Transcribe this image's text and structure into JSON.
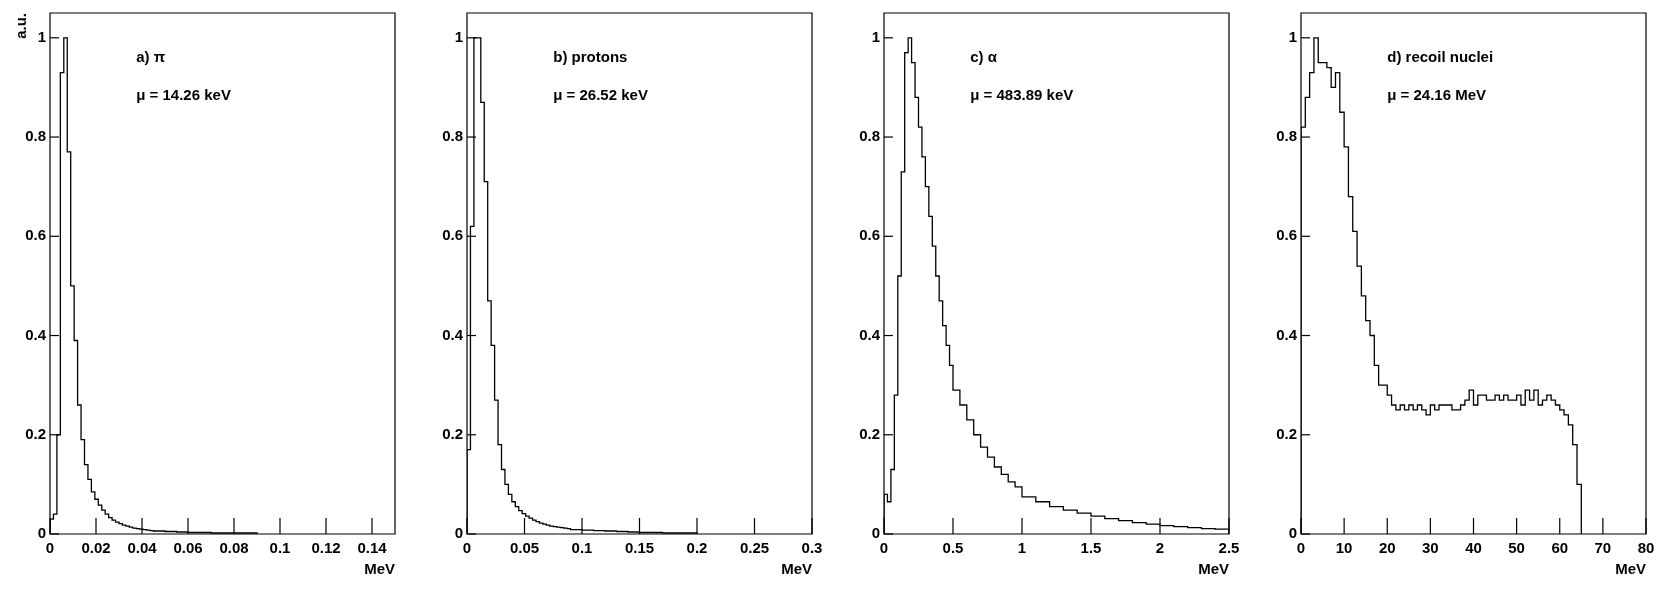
{
  "chart_data": [
    {
      "type": "histogram",
      "ylabel": "a.u.",
      "xlabel": "MeV",
      "annotations": [
        "a) π",
        "μ = 14.26 keV"
      ],
      "bins": [
        0,
        0.0015,
        0.003,
        0.0045,
        0.006,
        0.0075,
        0.009,
        0.0105,
        0.012,
        0.0135,
        0.015,
        0.0165,
        0.018,
        0.0195,
        0.021,
        0.0225,
        0.024,
        0.0255,
        0.027,
        0.0285,
        0.03,
        0.0315,
        0.033,
        0.0345,
        0.036,
        0.0375,
        0.039,
        0.0405,
        0.042,
        0.0435,
        0.045,
        0.05,
        0.055,
        0.06,
        0.065,
        0.07,
        0.075,
        0.08,
        0.085,
        0.09
      ],
      "values": [
        0.03,
        0.04,
        0.2,
        0.93,
        1.0,
        0.77,
        0.5,
        0.39,
        0.26,
        0.19,
        0.14,
        0.11,
        0.085,
        0.07,
        0.058,
        0.048,
        0.04,
        0.033,
        0.028,
        0.024,
        0.021,
        0.018,
        0.016,
        0.014,
        0.012,
        0.011,
        0.01,
        0.009,
        0.008,
        0.007,
        0.006,
        0.005,
        0.004,
        0.003,
        0.003,
        0.002,
        0.002,
        0.002,
        0.002
      ],
      "color": "#000000",
      "xlim": [
        0,
        0.15
      ],
      "xticks": [
        0,
        0.02,
        0.04,
        0.06,
        0.08,
        0.1,
        0.12,
        0.14
      ],
      "ylim": [
        0,
        1.05
      ],
      "yticks": [
        0,
        0.2,
        0.4,
        0.6,
        0.8,
        1
      ],
      "grid": false
    },
    {
      "type": "histogram",
      "xlabel": "MeV",
      "annotations": [
        "b) protons",
        "μ = 26.52 keV"
      ],
      "bins": [
        0,
        0.003,
        0.006,
        0.009,
        0.012,
        0.015,
        0.018,
        0.021,
        0.024,
        0.027,
        0.03,
        0.033,
        0.036,
        0.039,
        0.042,
        0.045,
        0.048,
        0.051,
        0.054,
        0.057,
        0.06,
        0.063,
        0.066,
        0.069,
        0.072,
        0.075,
        0.078,
        0.081,
        0.084,
        0.087,
        0.09,
        0.1,
        0.11,
        0.12,
        0.13,
        0.14,
        0.15,
        0.16,
        0.17,
        0.18,
        0.19,
        0.2
      ],
      "values": [
        0.17,
        0.62,
        1.0,
        1.0,
        0.87,
        0.71,
        0.47,
        0.38,
        0.27,
        0.18,
        0.13,
        0.1,
        0.08,
        0.065,
        0.055,
        0.047,
        0.041,
        0.036,
        0.032,
        0.028,
        0.025,
        0.022,
        0.02,
        0.018,
        0.016,
        0.015,
        0.014,
        0.013,
        0.012,
        0.011,
        0.009,
        0.008,
        0.007,
        0.006,
        0.005,
        0.004,
        0.003,
        0.003,
        0.002,
        0.002,
        0.002
      ],
      "color": "#000000",
      "xlim": [
        0,
        0.3
      ],
      "xticks": [
        0,
        0.05,
        0.1,
        0.15,
        0.2,
        0.25,
        0.3
      ],
      "ylim": [
        0,
        1.05
      ],
      "yticks": [
        0,
        0.2,
        0.4,
        0.6,
        0.8,
        1
      ],
      "grid": false
    },
    {
      "type": "histogram",
      "xlabel": "MeV",
      "annotations": [
        "c) α",
        "μ = 483.89 keV"
      ],
      "bins": [
        0,
        0.025,
        0.05,
        0.075,
        0.1,
        0.125,
        0.15,
        0.175,
        0.2,
        0.225,
        0.25,
        0.275,
        0.3,
        0.325,
        0.35,
        0.375,
        0.4,
        0.425,
        0.45,
        0.475,
        0.5,
        0.55,
        0.6,
        0.65,
        0.7,
        0.75,
        0.8,
        0.85,
        0.9,
        0.95,
        1.0,
        1.1,
        1.2,
        1.3,
        1.4,
        1.5,
        1.6,
        1.7,
        1.8,
        1.9,
        2.0,
        2.1,
        2.2,
        2.3,
        2.4,
        2.5
      ],
      "values": [
        0.08,
        0.065,
        0.13,
        0.28,
        0.52,
        0.73,
        0.97,
        1.0,
        0.95,
        0.88,
        0.82,
        0.76,
        0.7,
        0.64,
        0.58,
        0.52,
        0.47,
        0.42,
        0.38,
        0.34,
        0.29,
        0.26,
        0.23,
        0.2,
        0.175,
        0.155,
        0.135,
        0.12,
        0.105,
        0.095,
        0.075,
        0.065,
        0.055,
        0.048,
        0.042,
        0.036,
        0.031,
        0.027,
        0.023,
        0.02,
        0.017,
        0.015,
        0.013,
        0.011,
        0.01
      ],
      "color": "#000000",
      "xlim": [
        0,
        2.5
      ],
      "xticks": [
        0,
        0.5,
        1,
        1.5,
        2,
        2.5
      ],
      "ylim": [
        0,
        1.05
      ],
      "yticks": [
        0,
        0.2,
        0.4,
        0.6,
        0.8,
        1
      ],
      "grid": false
    },
    {
      "type": "histogram",
      "xlabel": "MeV",
      "annotations": [
        "d) recoil nuclei",
        "μ = 24.16 MeV"
      ],
      "bins": [
        0,
        1,
        2,
        3,
        4,
        5,
        6,
        7,
        8,
        9,
        10,
        11,
        12,
        13,
        14,
        15,
        16,
        17,
        18,
        19,
        20,
        21,
        22,
        23,
        24,
        25,
        26,
        27,
        28,
        29,
        30,
        31,
        32,
        33,
        34,
        35,
        36,
        37,
        38,
        39,
        40,
        41,
        42,
        43,
        44,
        45,
        46,
        47,
        48,
        49,
        50,
        51,
        52,
        53,
        54,
        55,
        56,
        57,
        58,
        59,
        60,
        61,
        62,
        63,
        64,
        65
      ],
      "values": [
        0.82,
        0.88,
        0.93,
        1.0,
        0.95,
        0.95,
        0.94,
        0.9,
        0.93,
        0.85,
        0.78,
        0.68,
        0.61,
        0.54,
        0.48,
        0.43,
        0.4,
        0.34,
        0.3,
        0.3,
        0.28,
        0.26,
        0.25,
        0.26,
        0.25,
        0.26,
        0.25,
        0.26,
        0.25,
        0.24,
        0.26,
        0.25,
        0.26,
        0.26,
        0.26,
        0.25,
        0.25,
        0.26,
        0.27,
        0.29,
        0.26,
        0.28,
        0.28,
        0.27,
        0.27,
        0.28,
        0.27,
        0.28,
        0.27,
        0.27,
        0.28,
        0.26,
        0.29,
        0.27,
        0.29,
        0.26,
        0.27,
        0.28,
        0.27,
        0.26,
        0.25,
        0.24,
        0.22,
        0.18,
        0.1
      ],
      "color": "#000000",
      "xlim": [
        0,
        80
      ],
      "xticks": [
        0,
        10,
        20,
        30,
        40,
        50,
        60,
        70,
        80
      ],
      "ylim": [
        0,
        1.05
      ],
      "yticks": [
        0,
        0.2,
        0.4,
        0.6,
        0.8,
        1
      ],
      "grid": false
    }
  ]
}
